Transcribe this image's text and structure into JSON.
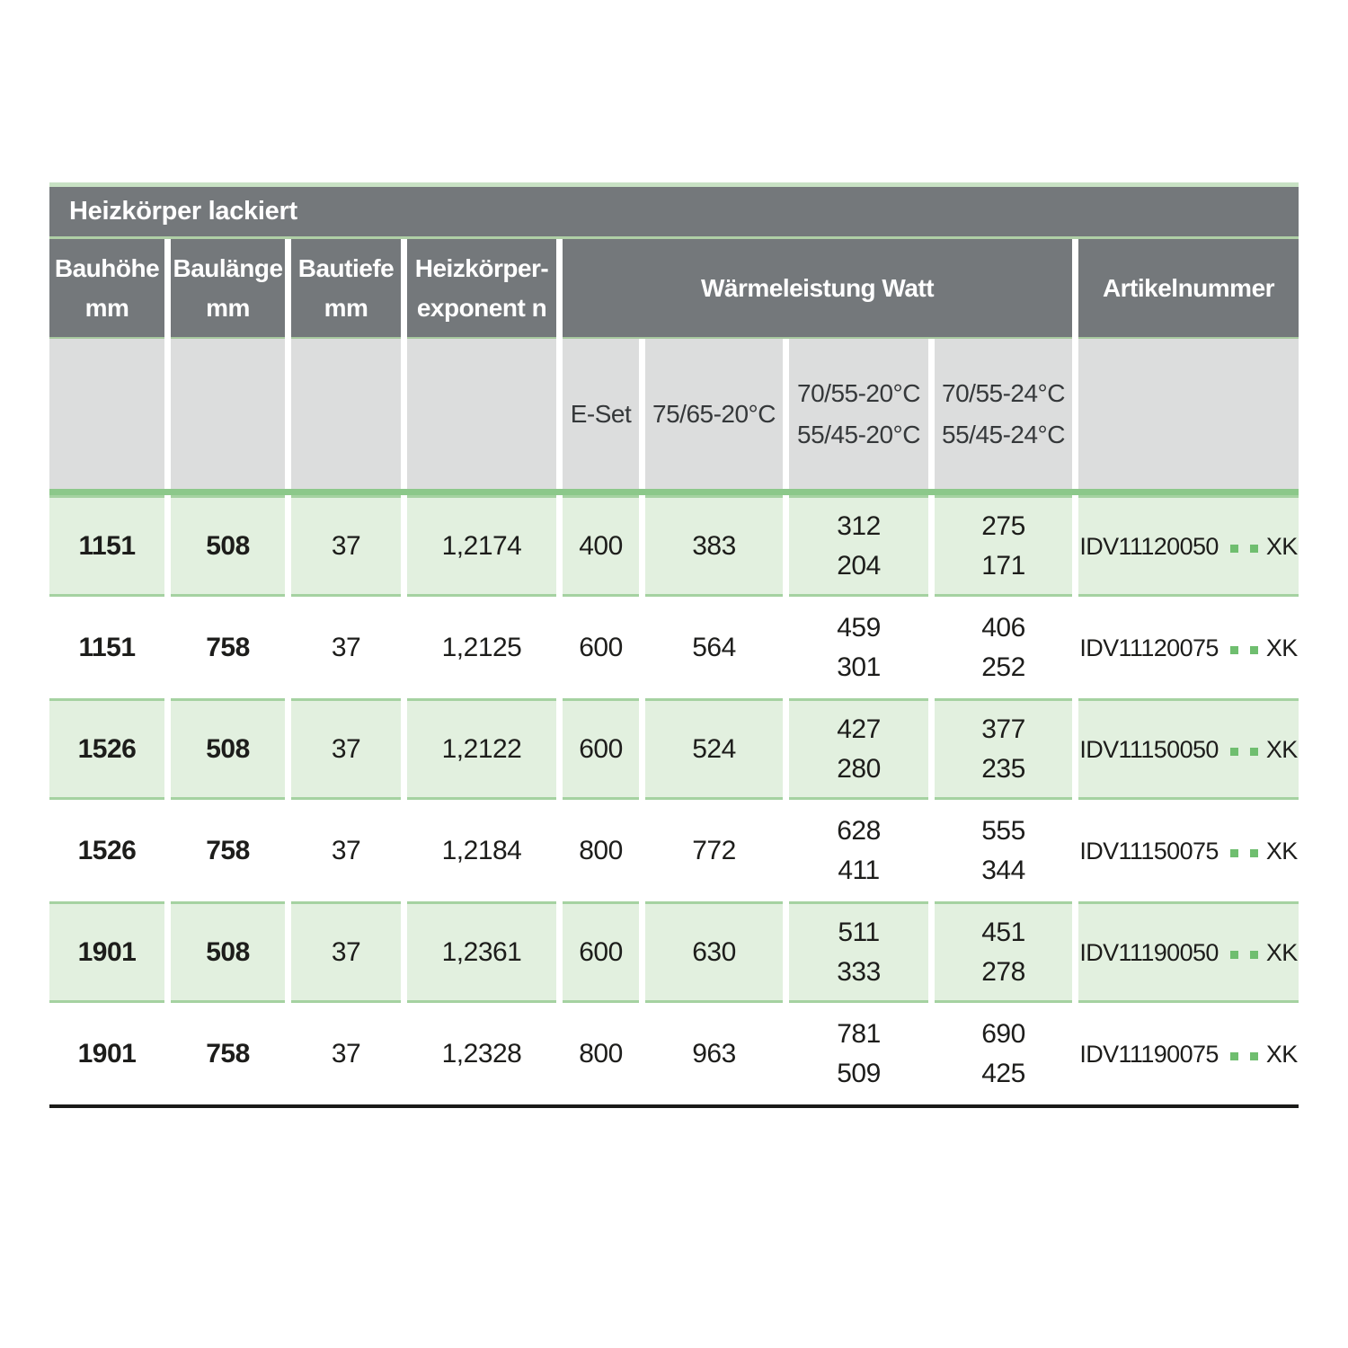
{
  "colors": {
    "header_bg": "#74787b",
    "subheader_bg": "#dcdddd",
    "row_green_bg": "#e2f0df",
    "row_border_green": "#a5d2a1",
    "divider_green_thick": "#8cc88a",
    "divider_green_light": "#c8e2c4",
    "accent_green_dots": "#6fbe6f",
    "bottom_rule": "#1a1a18",
    "header_text": "#ffffff",
    "body_text": "#1d1d1b"
  },
  "table": {
    "title": "Heizkörper lackiert",
    "columns": [
      {
        "line1": "Bauhöhe",
        "line2": "mm"
      },
      {
        "line1": "Baulänge",
        "line2": "mm"
      },
      {
        "line1": "Bautiefe",
        "line2": "mm"
      },
      {
        "line1": "Heizkörper-",
        "line2": "exponent n"
      }
    ],
    "watt_group_label": "Wärmeleistung Watt",
    "artikel_label": "Artikelnummer",
    "subcolumns": [
      {
        "line1": "E-Set",
        "line2": ""
      },
      {
        "line1": "75/65-20°C",
        "line2": ""
      },
      {
        "line1": "70/55-20°C",
        "line2": "55/45-20°C"
      },
      {
        "line1": "70/55-24°C",
        "line2": "55/45-24°C"
      }
    ],
    "rows": [
      {
        "bauhoehe": "1151",
        "baulaenge": "508",
        "bautiefe": "37",
        "exponent": "1,2174",
        "eset": "400",
        "watt_7565": "383",
        "watt_7055_20_line1": "312",
        "watt_7055_20_line2": "204",
        "watt_7055_24_line1": "275",
        "watt_7055_24_line2": "171",
        "artikel_prefix": "IDV11120050",
        "artikel_dots": ". .",
        "artikel_suffix": "XK",
        "shaded": true
      },
      {
        "bauhoehe": "1151",
        "baulaenge": "758",
        "bautiefe": "37",
        "exponent": "1,2125",
        "eset": "600",
        "watt_7565": "564",
        "watt_7055_20_line1": "459",
        "watt_7055_20_line2": "301",
        "watt_7055_24_line1": "406",
        "watt_7055_24_line2": "252",
        "artikel_prefix": "IDV11120075",
        "artikel_dots": ". .",
        "artikel_suffix": "XK",
        "shaded": false
      },
      {
        "bauhoehe": "1526",
        "baulaenge": "508",
        "bautiefe": "37",
        "exponent": "1,2122",
        "eset": "600",
        "watt_7565": "524",
        "watt_7055_20_line1": "427",
        "watt_7055_20_line2": "280",
        "watt_7055_24_line1": "377",
        "watt_7055_24_line2": "235",
        "artikel_prefix": "IDV11150050",
        "artikel_dots": ". .",
        "artikel_suffix": "XK",
        "shaded": true
      },
      {
        "bauhoehe": "1526",
        "baulaenge": "758",
        "bautiefe": "37",
        "exponent": "1,2184",
        "eset": "800",
        "watt_7565": "772",
        "watt_7055_20_line1": "628",
        "watt_7055_20_line2": "411",
        "watt_7055_24_line1": "555",
        "watt_7055_24_line2": "344",
        "artikel_prefix": "IDV11150075",
        "artikel_dots": ". .",
        "artikel_suffix": "XK",
        "shaded": false
      },
      {
        "bauhoehe": "1901",
        "baulaenge": "508",
        "bautiefe": "37",
        "exponent": "1,2361",
        "eset": "600",
        "watt_7565": "630",
        "watt_7055_20_line1": "511",
        "watt_7055_20_line2": "333",
        "watt_7055_24_line1": "451",
        "watt_7055_24_line2": "278",
        "artikel_prefix": "IDV11190050",
        "artikel_dots": ". .",
        "artikel_suffix": "XK",
        "shaded": true
      },
      {
        "bauhoehe": "1901",
        "baulaenge": "758",
        "bautiefe": "37",
        "exponent": "1,2328",
        "eset": "800",
        "watt_7565": "963",
        "watt_7055_20_line1": "781",
        "watt_7055_20_line2": "509",
        "watt_7055_24_line1": "690",
        "watt_7055_24_line2": "425",
        "artikel_prefix": "IDV11190075",
        "artikel_dots": ". .",
        "artikel_suffix": "XK",
        "shaded": false
      }
    ]
  }
}
